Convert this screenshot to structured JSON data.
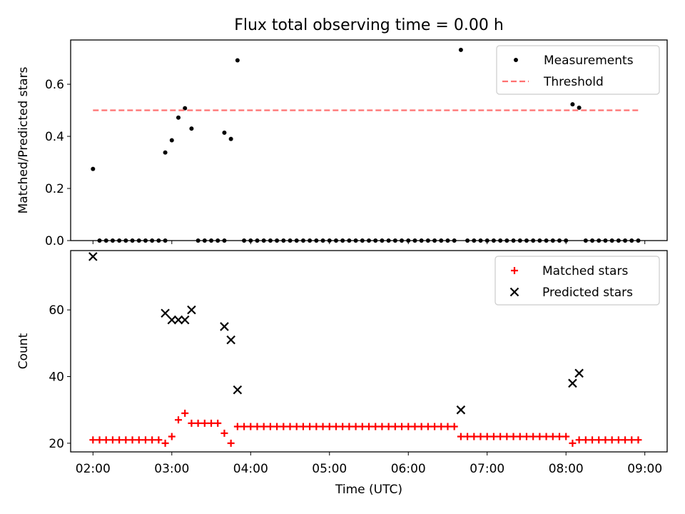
{
  "figure": {
    "title": "Flux total observing time = 0.00 h"
  },
  "chart_data": [
    {
      "type": "scatter",
      "panel": "top",
      "title": "Flux total observing time = 0.00 h",
      "xlabel": "",
      "ylabel": "Matched/Predicted stars",
      "xlim": [
        "01:43",
        "09:17"
      ],
      "ylim": [
        0,
        0.77
      ],
      "xticks": [
        "02:00",
        "03:00",
        "04:00",
        "05:00",
        "06:00",
        "07:00",
        "08:00",
        "09:00"
      ],
      "yticks": [
        "0.0",
        "0.2",
        "0.4",
        "0.6"
      ],
      "legend_position": "top-right",
      "series": [
        {
          "name": "Measurements",
          "marker": "dot",
          "color": "#000000",
          "points": [
            [
              "02:00",
              0.275
            ],
            [
              "02:05",
              0.0
            ],
            [
              "02:10",
              0.0
            ],
            [
              "02:15",
              0.0
            ],
            [
              "02:20",
              0.0
            ],
            [
              "02:25",
              0.0
            ],
            [
              "02:30",
              0.0
            ],
            [
              "02:35",
              0.0
            ],
            [
              "02:40",
              0.0
            ],
            [
              "02:45",
              0.0
            ],
            [
              "02:50",
              0.0
            ],
            [
              "02:55",
              0.0
            ],
            [
              "02:55",
              0.338
            ],
            [
              "03:00",
              0.385
            ],
            [
              "03:05",
              0.472
            ],
            [
              "03:10",
              0.508
            ],
            [
              "03:15",
              0.43
            ],
            [
              "03:20",
              0.0
            ],
            [
              "03:25",
              0.0
            ],
            [
              "03:30",
              0.0
            ],
            [
              "03:35",
              0.0
            ],
            [
              "03:40",
              0.0
            ],
            [
              "03:40",
              0.414
            ],
            [
              "03:45",
              0.39
            ],
            [
              "03:50",
              0.692
            ],
            [
              "03:55",
              0.0
            ],
            [
              "04:00",
              0.0
            ],
            [
              "04:05",
              0.0
            ],
            [
              "04:10",
              0.0
            ],
            [
              "04:15",
              0.0
            ],
            [
              "04:20",
              0.0
            ],
            [
              "04:25",
              0.0
            ],
            [
              "04:30",
              0.0
            ],
            [
              "04:35",
              0.0
            ],
            [
              "04:40",
              0.0
            ],
            [
              "04:45",
              0.0
            ],
            [
              "04:50",
              0.0
            ],
            [
              "04:55",
              0.0
            ],
            [
              "05:00",
              0.0
            ],
            [
              "05:05",
              0.0
            ],
            [
              "05:10",
              0.0
            ],
            [
              "05:15",
              0.0
            ],
            [
              "05:20",
              0.0
            ],
            [
              "05:25",
              0.0
            ],
            [
              "05:30",
              0.0
            ],
            [
              "05:35",
              0.0
            ],
            [
              "05:40",
              0.0
            ],
            [
              "05:45",
              0.0
            ],
            [
              "05:50",
              0.0
            ],
            [
              "05:55",
              0.0
            ],
            [
              "06:00",
              0.0
            ],
            [
              "06:05",
              0.0
            ],
            [
              "06:10",
              0.0
            ],
            [
              "06:15",
              0.0
            ],
            [
              "06:20",
              0.0
            ],
            [
              "06:25",
              0.0
            ],
            [
              "06:30",
              0.0
            ],
            [
              "06:35",
              0.0
            ],
            [
              "06:40",
              0.732
            ],
            [
              "06:45",
              0.0
            ],
            [
              "06:50",
              0.0
            ],
            [
              "06:55",
              0.0
            ],
            [
              "07:00",
              0.0
            ],
            [
              "07:05",
              0.0
            ],
            [
              "07:10",
              0.0
            ],
            [
              "07:15",
              0.0
            ],
            [
              "07:20",
              0.0
            ],
            [
              "07:25",
              0.0
            ],
            [
              "07:30",
              0.0
            ],
            [
              "07:35",
              0.0
            ],
            [
              "07:40",
              0.0
            ],
            [
              "07:45",
              0.0
            ],
            [
              "07:50",
              0.0
            ],
            [
              "07:55",
              0.0
            ],
            [
              "08:00",
              0.0
            ],
            [
              "08:05",
              0.523
            ],
            [
              "08:10",
              0.51
            ],
            [
              "08:15",
              0.0
            ],
            [
              "08:20",
              0.0
            ],
            [
              "08:25",
              0.0
            ],
            [
              "08:30",
              0.0
            ],
            [
              "08:35",
              0.0
            ],
            [
              "08:40",
              0.0
            ],
            [
              "08:45",
              0.0
            ],
            [
              "08:50",
              0.0
            ],
            [
              "08:55",
              0.0
            ]
          ]
        },
        {
          "name": "Threshold",
          "type": "line",
          "style": "dashed",
          "color": "#ff7070",
          "points": [
            [
              "02:00",
              0.5
            ],
            [
              "08:55",
              0.5
            ]
          ]
        }
      ]
    },
    {
      "type": "scatter",
      "panel": "bottom",
      "xlabel": "Time (UTC)",
      "ylabel": "Count",
      "xlim": [
        "01:43",
        "09:17"
      ],
      "ylim": [
        17.4,
        77.8
      ],
      "xticks": [
        "02:00",
        "03:00",
        "04:00",
        "05:00",
        "06:00",
        "07:00",
        "08:00",
        "09:00"
      ],
      "yticks": [
        "20",
        "40",
        "60"
      ],
      "legend_position": "top-right",
      "series": [
        {
          "name": "Matched stars",
          "marker": "plus",
          "color": "#ff0000",
          "segments": [
            {
              "start": "02:00",
              "end": "02:50",
              "value": 21
            },
            {
              "start": "02:55",
              "end": "02:55",
              "value": 20
            },
            {
              "start": "03:00",
              "end": "03:00",
              "value": 22
            },
            {
              "start": "03:05",
              "end": "03:05",
              "value": 27
            },
            {
              "start": "03:10",
              "end": "03:10",
              "value": 29
            },
            {
              "start": "03:15",
              "end": "03:35",
              "value": 26
            },
            {
              "start": "03:40",
              "end": "03:40",
              "value": 23
            },
            {
              "start": "03:45",
              "end": "03:45",
              "value": 20
            },
            {
              "start": "03:50",
              "end": "06:35",
              "value": 25
            },
            {
              "start": "06:40",
              "end": "08:00",
              "value": 22
            },
            {
              "start": "08:05",
              "end": "08:05",
              "value": 20
            },
            {
              "start": "08:10",
              "end": "08:55",
              "value": 21
            }
          ]
        },
        {
          "name": "Predicted stars",
          "marker": "x",
          "color": "#000000",
          "points": [
            [
              "02:00",
              76
            ],
            [
              "02:55",
              59
            ],
            [
              "03:00",
              57
            ],
            [
              "03:05",
              57
            ],
            [
              "03:10",
              57
            ],
            [
              "03:15",
              60
            ],
            [
              "03:40",
              55
            ],
            [
              "03:45",
              51
            ],
            [
              "03:50",
              36
            ],
            [
              "06:40",
              30
            ],
            [
              "08:05",
              38
            ],
            [
              "08:10",
              41
            ]
          ]
        }
      ]
    }
  ]
}
